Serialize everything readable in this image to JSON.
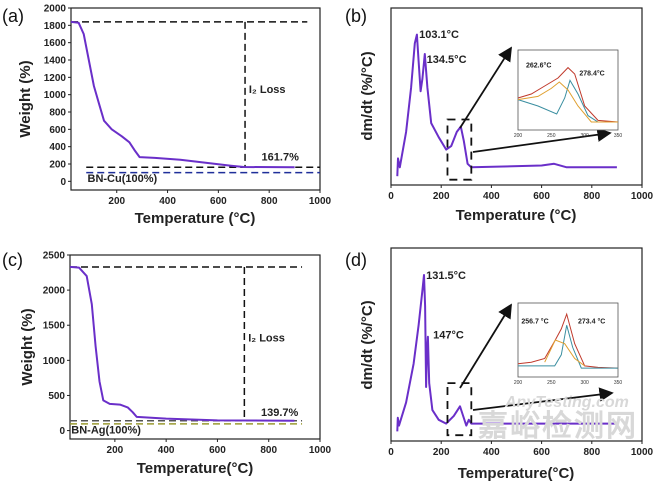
{
  "chart_data": [
    {
      "panel_label": "(a)",
      "type": "line",
      "xlabel": "Temperature (°C)",
      "ylabel": "Weight (%)",
      "xlim": [
        20,
        1000
      ],
      "ylim": [
        -100,
        2000
      ],
      "xticks": [
        200,
        400,
        600,
        800,
        1000
      ],
      "yticks": [
        0,
        200,
        400,
        600,
        800,
        1000,
        1200,
        1400,
        1600,
        1800,
        2000
      ],
      "series": [
        {
          "color": "#6a2fc9",
          "x": [
            20,
            50,
            70,
            90,
            110,
            130,
            150,
            180,
            220,
            250,
            270,
            290,
            350,
            450,
            550,
            650,
            700,
            900
          ],
          "y": [
            1840,
            1830,
            1700,
            1400,
            1100,
            900,
            700,
            600,
            520,
            450,
            360,
            280,
            270,
            250,
            215,
            180,
            165,
            162
          ]
        }
      ],
      "reference_lines": [
        {
          "orientation": "h",
          "value": 1840,
          "from": 20,
          "to": 950,
          "color": "#111111"
        },
        {
          "orientation": "v",
          "value": 705,
          "from": 1840,
          "to": 165,
          "color": "#111111"
        },
        {
          "orientation": "h",
          "value": 162,
          "from": 80,
          "to": 1000,
          "color": "#111111"
        },
        {
          "orientation": "h",
          "value": 100,
          "from": 80,
          "to": 1000,
          "color": "#1f2f9a"
        }
      ],
      "annotations": [
        {
          "text": "I₂ Loss",
          "x": 720,
          "y": 1020,
          "color": "#222222"
        },
        {
          "text": "161.7%",
          "x": 770,
          "y": 240,
          "color": "#222222"
        },
        {
          "text": "BN-Cu(100%)",
          "x": 85,
          "y": -10,
          "color": "#1f2f9a"
        }
      ]
    },
    {
      "panel_label": "(b)",
      "type": "line",
      "xlabel": "Temperature (°C)",
      "ylabel": "dm/dt (%/°C)",
      "xlim": [
        0,
        1000
      ],
      "ylim": [
        0,
        1
      ],
      "xticks": [
        0,
        200,
        400,
        600,
        800,
        1000
      ],
      "series": [
        {
          "color": "#6a2fc9",
          "x": [
            25,
            28,
            35,
            60,
            80,
            95,
            103,
            110,
            118,
            125,
            134.5,
            145,
            160,
            190,
            220,
            240,
            262,
            278,
            290,
            305,
            320,
            600,
            650,
            700,
            900
          ],
          "y": [
            0.05,
            0.15,
            0.1,
            0.3,
            0.55,
            0.8,
            0.85,
            0.7,
            0.53,
            0.6,
            0.74,
            0.55,
            0.35,
            0.27,
            0.2,
            0.22,
            0.3,
            0.33,
            0.25,
            0.12,
            0.1,
            0.11,
            0.12,
            0.1,
            0.1
          ]
        }
      ],
      "annotations": [
        {
          "text": "103.1°C",
          "x": 112,
          "y": 0.83
        },
        {
          "text": "134.5°C",
          "x": 142,
          "y": 0.69
        }
      ],
      "zoom_box": {
        "x": [
          225,
          320
        ],
        "y": [
          0.03,
          0.37
        ]
      },
      "inset": {
        "xlim": [
          200,
          350
        ],
        "xticks": [
          200,
          250,
          300,
          350
        ],
        "series": [
          {
            "color": "#c0392b",
            "x": [
              200,
              220,
              240,
              260,
              275,
              285,
              300,
              320,
              350
            ],
            "y": [
              0.4,
              0.45,
              0.55,
              0.65,
              0.78,
              0.7,
              0.3,
              0.12,
              0.1
            ]
          },
          {
            "color": "#3a8ea0",
            "x": [
              200,
              230,
              258,
              270,
              278,
              290,
              305,
              320,
              350
            ],
            "y": [
              0.38,
              0.3,
              0.2,
              0.4,
              0.62,
              0.45,
              0.18,
              0.1,
              0.1
            ]
          },
          {
            "color": "#e0a030",
            "x": [
              200,
              230,
              250,
              262,
              275,
              290,
              310,
              350
            ],
            "y": [
              0.38,
              0.42,
              0.52,
              0.6,
              0.5,
              0.3,
              0.1,
              0.1
            ]
          }
        ],
        "annotations": [
          {
            "text": "262.6°C",
            "x": 212,
            "y": 0.78
          },
          {
            "text": "278.4°C",
            "x": 292,
            "y": 0.68
          }
        ]
      }
    },
    {
      "panel_label": "(c)",
      "type": "line",
      "xlabel": "Temperature(°C)",
      "ylabel": "Weight (%)",
      "xlim": [
        25,
        1000
      ],
      "ylim": [
        -120,
        2500
      ],
      "xticks": [
        200,
        400,
        600,
        800,
        1000
      ],
      "yticks": [
        0,
        500,
        1000,
        1500,
        2000,
        2500
      ],
      "series": [
        {
          "color": "#6a2fc9",
          "x": [
            25,
            60,
            90,
            110,
            125,
            140,
            155,
            180,
            220,
            250,
            270,
            285,
            400,
            600,
            900
          ],
          "y": [
            2330,
            2320,
            2200,
            1800,
            1200,
            700,
            430,
            380,
            370,
            330,
            260,
            195,
            170,
            145,
            140
          ]
        }
      ],
      "reference_lines": [
        {
          "orientation": "h",
          "value": 2330,
          "from": 25,
          "to": 930,
          "color": "#111111"
        },
        {
          "orientation": "v",
          "value": 705,
          "from": 2330,
          "to": 140,
          "color": "#111111"
        },
        {
          "orientation": "h",
          "value": 140,
          "from": 25,
          "to": 930,
          "color": "#555555"
        },
        {
          "orientation": "h",
          "value": 95,
          "from": 25,
          "to": 930,
          "color": "#9a9a30"
        }
      ],
      "annotations": [
        {
          "text": "I₂ Loss",
          "x": 720,
          "y": 1270,
          "color": "#222222"
        },
        {
          "text": "139.7%",
          "x": 770,
          "y": 210,
          "color": "#222222"
        },
        {
          "text": "BN-Ag(100%)",
          "x": 30,
          "y": -40,
          "color": "#8a8a20"
        }
      ]
    },
    {
      "panel_label": "(d)",
      "type": "line",
      "xlabel": "Temperature(°C)",
      "ylabel": "dm/dt (%/°C)",
      "xlim": [
        0,
        1000
      ],
      "ylim": [
        0,
        1
      ],
      "xticks": [
        0,
        200,
        400,
        600,
        800,
        1000
      ],
      "series": [
        {
          "color": "#6a2fc9",
          "x": [
            25,
            27,
            32,
            60,
            90,
            110,
            125,
            131.5,
            136,
            140,
            143,
            147,
            152,
            165,
            190,
            220,
            250,
            270,
            275,
            285,
            300,
            310,
            320,
            900
          ],
          "y": [
            0.05,
            0.12,
            0.08,
            0.2,
            0.4,
            0.6,
            0.78,
            0.86,
            0.7,
            0.28,
            0.45,
            0.54,
            0.3,
            0.16,
            0.11,
            0.09,
            0.13,
            0.17,
            0.18,
            0.14,
            0.08,
            0.11,
            0.09,
            0.09
          ]
        }
      ],
      "annotations": [
        {
          "text": "131.5°C",
          "x": 140,
          "y": 0.84
        },
        {
          "text": "147°C",
          "x": 168,
          "y": 0.53
        }
      ],
      "zoom_box": {
        "x": [
          225,
          320
        ],
        "y": [
          0.03,
          0.3
        ]
      },
      "inset": {
        "xlim": [
          200,
          350
        ],
        "xticks": [
          200,
          250,
          300,
          350
        ],
        "series": [
          {
            "color": "#c0392b",
            "x": [
              200,
              220,
              240,
              256,
              265,
              273,
              285,
              300,
              320,
              350
            ],
            "y": [
              0.18,
              0.2,
              0.25,
              0.5,
              0.65,
              0.85,
              0.45,
              0.15,
              0.13,
              0.12
            ]
          },
          {
            "color": "#3a8ea0",
            "x": [
              200,
              255,
              265,
              273,
              282,
              295,
              350
            ],
            "y": [
              0.15,
              0.15,
              0.3,
              0.7,
              0.4,
              0.12,
              0.12
            ]
          },
          {
            "color": "#e0a030",
            "x": [
              240,
              256,
              270,
              285,
              300
            ],
            "y": [
              0.2,
              0.5,
              0.45,
              0.25,
              0.15
            ]
          }
        ],
        "annotations": [
          {
            "text": "256.7 °C",
            "x": 205,
            "y": 0.72
          },
          {
            "text": "273.4 °C",
            "x": 290,
            "y": 0.72
          }
        ]
      }
    }
  ],
  "watermark": {
    "line1": "嘉峪检测网",
    "line2": "AnyTesting.com"
  }
}
